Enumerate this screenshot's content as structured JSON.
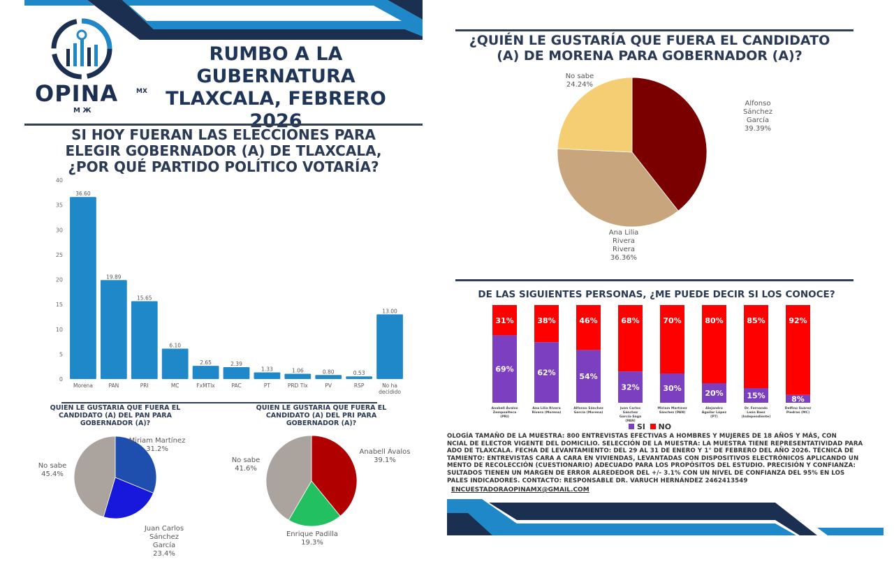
{
  "brand": {
    "logo_text": "OPINA",
    "logo_suffix": "MX",
    "logo_sub": "M Ж"
  },
  "header": {
    "title_lines": [
      "RUMBO A LA GUBERNATURA",
      "TLAXCALA, FEBRERO",
      "2026"
    ]
  },
  "colors": {
    "navy": "#1f3557",
    "blue": "#1e88c8",
    "dark_navy": "#1b2f50",
    "si": "#7b3fbf",
    "no": "#ff0000"
  },
  "chart_data": [
    {
      "type": "bar",
      "title": "SI HOY FUERAN LAS ELECCIONES PARA ELEGIR GOBERNADOR (A) DE TLAXCALA, ¿POR QUÉ PARTIDO POLÍTICO VOTARÍA?",
      "title_lines": [
        "SI HOY FUERAN LAS ELECCIONES PARA",
        "ELEGIR GOBERNADOR (A) DE TLAXCALA,",
        "¿POR QUÉ PARTIDO POLÍTICO VOTARÍA?"
      ],
      "categories": [
        "Morena",
        "PAN",
        "PRI",
        "MC",
        "FxMTlx",
        "PAC",
        "PT",
        "PRD Tlx",
        "PV",
        "RSP",
        "No ha decidido"
      ],
      "values": [
        36.6,
        19.89,
        15.65,
        6.1,
        2.65,
        2.39,
        1.33,
        1.06,
        0.8,
        0.53,
        13.0
      ],
      "data_labels": [
        "36.60",
        "19.89",
        "15.65",
        "6.10",
        "2.65",
        "2.39",
        "1.33",
        "1.06",
        "0.80",
        "0.53",
        "13.00"
      ],
      "ylim": [
        0,
        40
      ],
      "yticks": [
        0,
        5,
        10,
        15,
        20,
        25,
        30,
        35,
        40
      ],
      "color": "#1e88c8",
      "grid": false
    },
    {
      "type": "pie",
      "title_lines": [
        "QUIEN LE GUSTARIA QUE FUERA EL",
        "CANDIDATO (A) DEL PAN PARA",
        "GOBERNADOR (A)?"
      ],
      "slices": [
        {
          "label": "Miriam Martínez",
          "value": 31.2,
          "text": "31.2%",
          "color": "#1f4fae"
        },
        {
          "label": "Juan Carlos Sánchez García",
          "value": 23.4,
          "text": "23.4%",
          "color": "#1818dc"
        },
        {
          "label": "No sabe",
          "value": 45.4,
          "text": "45.4%",
          "color": "#aaa39e"
        }
      ]
    },
    {
      "type": "pie",
      "title_lines": [
        "QUIEN LE GUSTARIA QUE FUERA EL",
        "CANDIDATO (A) DEL PRI PARA",
        "GOBERNADOR (A)?"
      ],
      "slices": [
        {
          "label": "Anabell Ávalos",
          "value": 39.1,
          "text": "39.1%",
          "color": "#b00000"
        },
        {
          "label": "Enrique Padilla",
          "value": 19.3,
          "text": "19.3%",
          "color": "#22c060"
        },
        {
          "label": "No sabe",
          "value": 41.6,
          "text": "41.6%",
          "color": "#aaa39e"
        }
      ]
    },
    {
      "type": "pie",
      "title_lines": [
        "¿QUIÉN LE GUSTARÍA QUE FUERA EL CANDIDATO",
        "(A) DE MORENA PARA GOBERNADOR (A)?"
      ],
      "slices": [
        {
          "label": "Alfonso Sánchez García",
          "value": 39.39,
          "text": "39.39%",
          "color": "#7a0000"
        },
        {
          "label": "Ana Lilia Rivera Rivera",
          "value": 36.36,
          "text": "36.36%",
          "color": "#c8a57c"
        },
        {
          "label": "No sabe",
          "value": 24.24,
          "text": "24.24%",
          "color": "#f5cd72"
        }
      ]
    },
    {
      "type": "bar",
      "stacked": true,
      "title": "DE LAS SIGUIENTES PERSONAS, ¿ME PUEDE DECIR SI LOS CONOCE?",
      "categories": [
        "Anabell Ávalos Zempoalteca (PRI)",
        "Ana Lilia Rivera Rivera (Morena)",
        "Alfonso Sánchez García (Morena)",
        "Juan Carlos Sánchez García-Saga (PAN)",
        "Miriam Martínez Sánchez (PAN)",
        "Alejandro Águilar López (PT)",
        "Dr. Fernando León Baez (Independiente)",
        "Delfino Suárez Piedras (MC)"
      ],
      "series": [
        {
          "name": "SI",
          "color": "#7b3fbf",
          "values": [
            69,
            62,
            54,
            32,
            30,
            20,
            15,
            8
          ]
        },
        {
          "name": "NO",
          "color": "#ff0000",
          "values": [
            31,
            38,
            46,
            68,
            70,
            80,
            85,
            92
          ]
        }
      ],
      "ylim": [
        0,
        100
      ],
      "legend": "bottom"
    }
  ],
  "methodology": {
    "lines": [
      "OLOGÍA TAMAÑO DE LA MUESTRA: 800 ENTREVISTAS EFECTIVAS A HOMBRES Y MUJERES DE 18 AÑOS Y MÁS, CON",
      "NCIAL DE ELECTOR VIGENTE DEL DOMICILIO. SELECCIÓN DE LA MUESTRA: LA MUESTRA TIENE REPRESENTATIVIDAD PARA",
      "ADO DE TLAXCALA. FECHA DE LEVANTAMIENTO: DEL 29 AL 31 DE ENERO Y 1° DE FEBRERO DEL AÑO 2026. TÉCNICA DE",
      "TAMIENTO: ENTREVISTAS CARA A CARA EN VIVIENDAS, LEVANTADAS CON DISPOSITIVOS ELECTRÓNICOS APLICANDO UN",
      "MENTO DE RECOLECCIÓN (CUESTIONARIO) ADECUADO PARA LOS PROPÓSITOS DEL ESTUDIO. PRECISIÓN Y CONFIANZA:",
      "SULTADOS TIENEN UN MARGEN DE ERROR ALREDEDOR DEL +/- 3.1% CON UN NIVEL DE CONFIANZA DEL 95% EN LOS",
      "PALES INDICADORES. CONTACTO: RESPONSABLE DR. VARUCH HERNÁNDEZ        2462413549"
    ],
    "email": "ENCUESTADORAOPINAMX@GMAIL.COM"
  }
}
